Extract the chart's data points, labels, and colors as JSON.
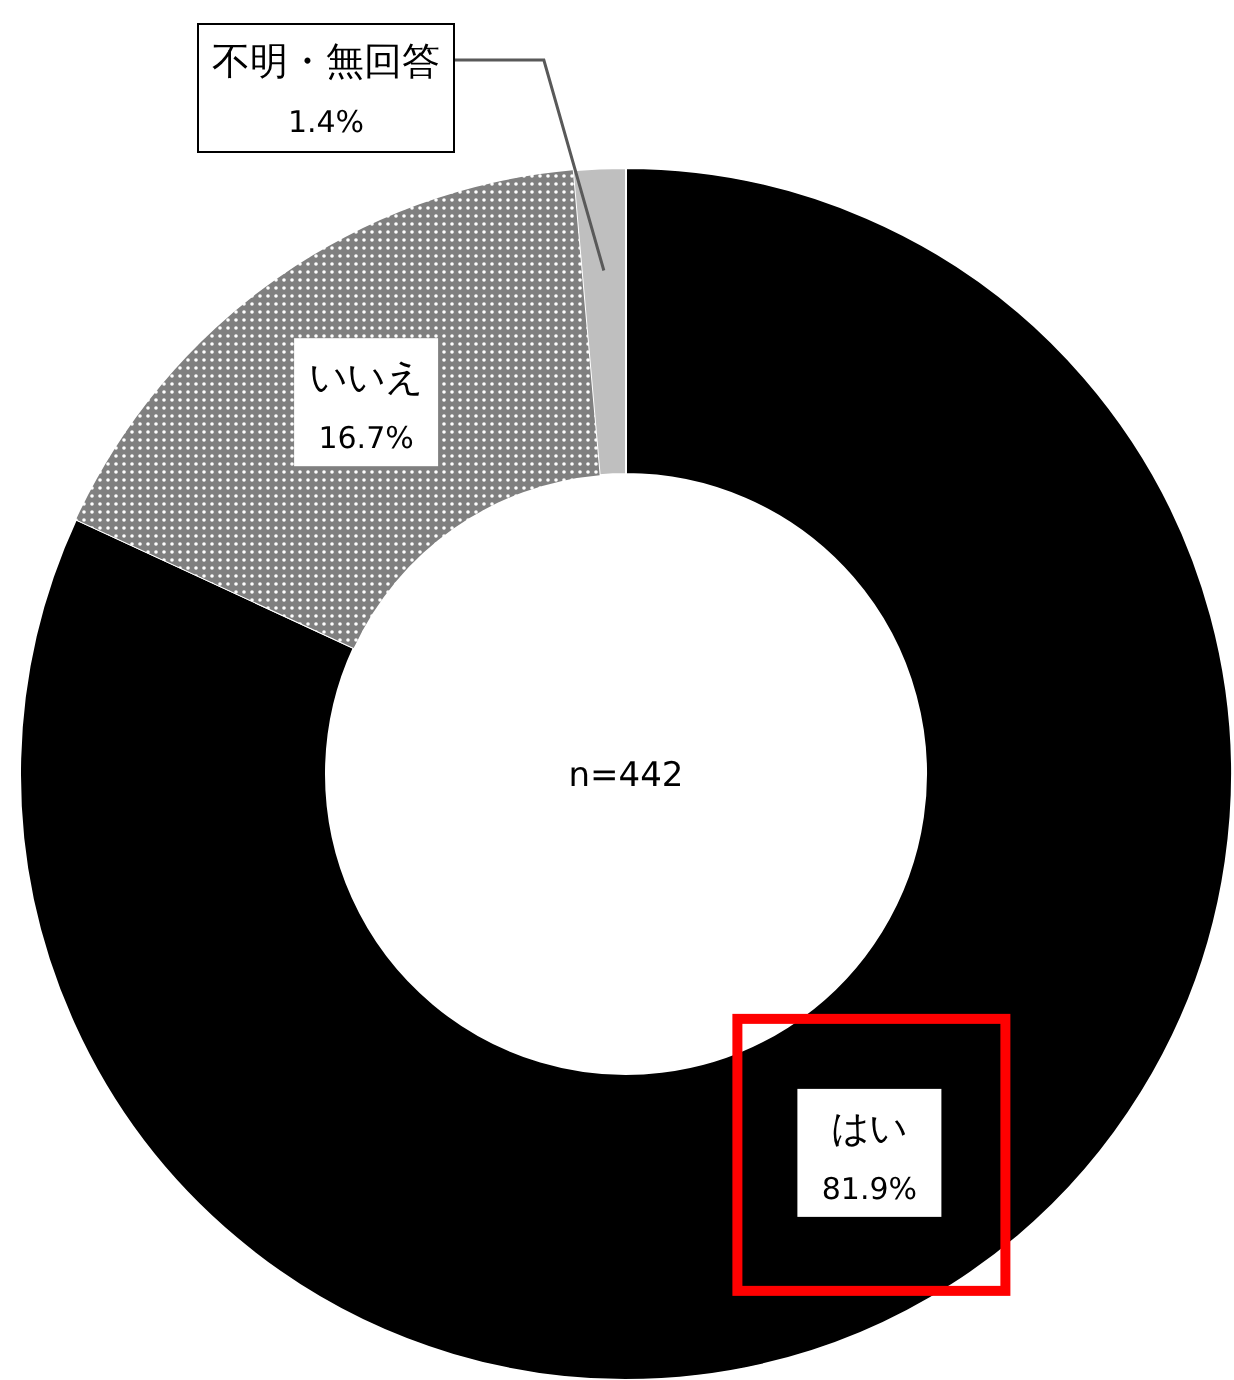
{
  "chart_data": {
    "type": "donut",
    "categories": [
      "はい",
      "いいえ",
      "不明・無回答"
    ],
    "values": [
      81.9,
      16.7,
      1.4
    ],
    "value_labels": [
      "81.9%",
      "16.7%",
      "1.4%"
    ],
    "colors": [
      "#000000",
      "#808080",
      "#bfbfbf"
    ],
    "annotations": [
      "n=442"
    ],
    "legend": false
  }
}
